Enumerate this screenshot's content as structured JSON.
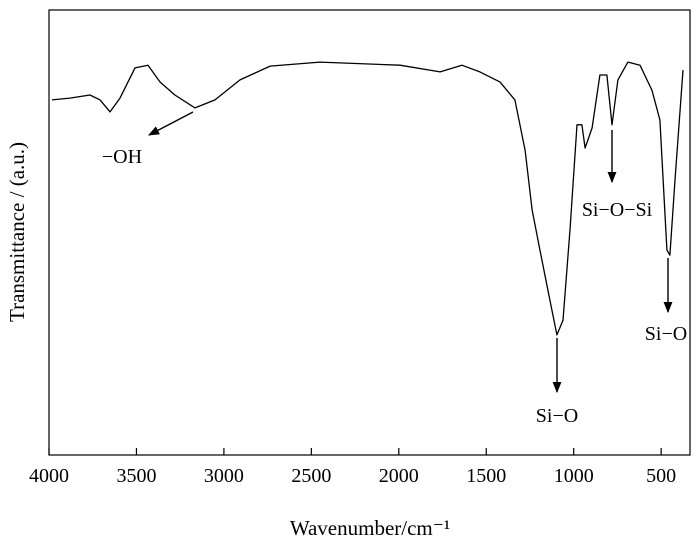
{
  "chart_data": {
    "type": "line",
    "x_label": "Wavenumber/cm⁻¹",
    "y_label": "Transmittance / (a.u.)",
    "x": [
      3983,
      3880,
      3766,
      3708,
      3651,
      3594,
      3508,
      3434,
      3365,
      3280,
      3165,
      3051,
      2908,
      2736,
      2451,
      1993,
      1764,
      1639,
      1536,
      1421,
      1336,
      1278,
      1238,
      1193,
      1136,
      1096,
      1061,
      1021,
      981,
      953,
      935,
      895,
      850,
      810,
      781,
      747,
      690,
      621,
      553,
      507,
      467,
      450,
      421,
      375
    ],
    "values": [
      79.8,
      80.2,
      80.9,
      79.8,
      77.1,
      80.2,
      87.0,
      87.6,
      83.8,
      80.9,
      78.0,
      79.8,
      84.3,
      87.4,
      88.3,
      87.6,
      86.1,
      87.6,
      86.1,
      83.8,
      79.8,
      68.5,
      55.1,
      46.1,
      34.8,
      27.0,
      30.3,
      50.6,
      74.2,
      74.2,
      69.0,
      73.5,
      85.4,
      85.4,
      74.2,
      84.3,
      88.3,
      87.6,
      82.0,
      75.3,
      46.1,
      44.9,
      61.8,
      86.5
    ],
    "color": "#000000",
    "xlim": [
      4000,
      335
    ],
    "ylim": [
      0,
      100
    ],
    "xticks": [
      4000,
      3500,
      3000,
      2500,
      2000,
      1500,
      1000,
      500
    ],
    "annotations": [
      "−OH",
      "Si−O−Si",
      "Si−O",
      "Si−O"
    ]
  }
}
